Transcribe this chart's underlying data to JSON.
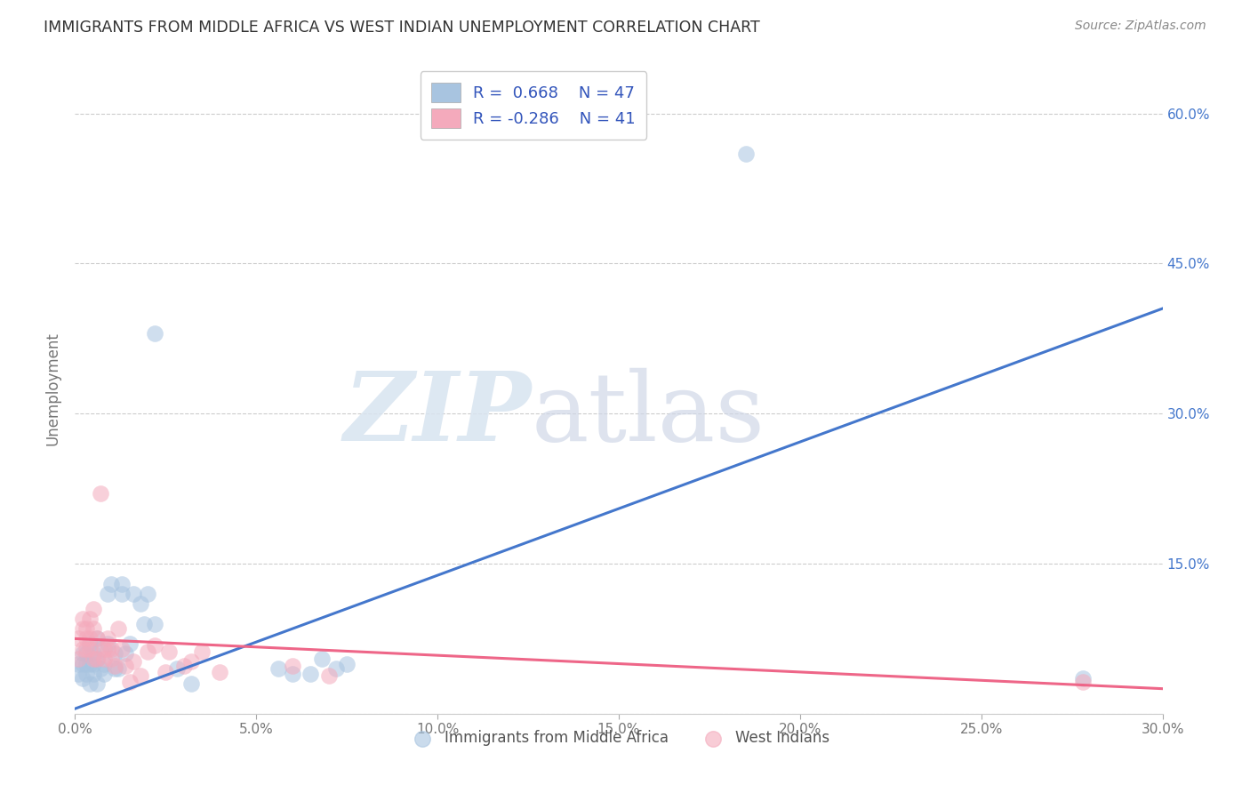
{
  "title": "IMMIGRANTS FROM MIDDLE AFRICA VS WEST INDIAN UNEMPLOYMENT CORRELATION CHART",
  "source": "Source: ZipAtlas.com",
  "ylabel": "Unemployment",
  "blue_R": "0.668",
  "blue_N": "47",
  "pink_R": "-0.286",
  "pink_N": "41",
  "blue_color": "#A8C4E0",
  "pink_color": "#F4AABC",
  "blue_line_color": "#4477CC",
  "pink_line_color": "#EE6688",
  "background_color": "#FFFFFF",
  "blue_line_x0": 0.0,
  "blue_line_y0": 0.005,
  "blue_line_x1": 0.3,
  "blue_line_y1": 0.405,
  "pink_line_x0": 0.0,
  "pink_line_y0": 0.075,
  "pink_line_x1": 0.3,
  "pink_line_y1": 0.025,
  "blue_points": [
    [
      0.001,
      0.05
    ],
    [
      0.001,
      0.04
    ],
    [
      0.002,
      0.05
    ],
    [
      0.002,
      0.035
    ],
    [
      0.002,
      0.06
    ],
    [
      0.003,
      0.05
    ],
    [
      0.003,
      0.04
    ],
    [
      0.003,
      0.06
    ],
    [
      0.004,
      0.07
    ],
    [
      0.004,
      0.05
    ],
    [
      0.004,
      0.03
    ],
    [
      0.005,
      0.06
    ],
    [
      0.005,
      0.05
    ],
    [
      0.005,
      0.04
    ],
    [
      0.006,
      0.055
    ],
    [
      0.006,
      0.075
    ],
    [
      0.006,
      0.03
    ],
    [
      0.007,
      0.065
    ],
    [
      0.007,
      0.045
    ],
    [
      0.008,
      0.05
    ],
    [
      0.008,
      0.04
    ],
    [
      0.009,
      0.07
    ],
    [
      0.009,
      0.12
    ],
    [
      0.01,
      0.13
    ],
    [
      0.011,
      0.06
    ],
    [
      0.011,
      0.045
    ],
    [
      0.012,
      0.045
    ],
    [
      0.013,
      0.12
    ],
    [
      0.013,
      0.13
    ],
    [
      0.014,
      0.06
    ],
    [
      0.015,
      0.07
    ],
    [
      0.016,
      0.12
    ],
    [
      0.018,
      0.11
    ],
    [
      0.019,
      0.09
    ],
    [
      0.02,
      0.12
    ],
    [
      0.022,
      0.09
    ],
    [
      0.022,
      0.38
    ],
    [
      0.028,
      0.045
    ],
    [
      0.032,
      0.03
    ],
    [
      0.056,
      0.045
    ],
    [
      0.06,
      0.04
    ],
    [
      0.065,
      0.04
    ],
    [
      0.068,
      0.055
    ],
    [
      0.072,
      0.045
    ],
    [
      0.075,
      0.05
    ],
    [
      0.185,
      0.56
    ],
    [
      0.278,
      0.035
    ]
  ],
  "pink_points": [
    [
      0.001,
      0.055
    ],
    [
      0.001,
      0.075
    ],
    [
      0.002,
      0.065
    ],
    [
      0.002,
      0.085
    ],
    [
      0.002,
      0.095
    ],
    [
      0.003,
      0.075
    ],
    [
      0.003,
      0.065
    ],
    [
      0.003,
      0.085
    ],
    [
      0.004,
      0.095
    ],
    [
      0.004,
      0.065
    ],
    [
      0.004,
      0.075
    ],
    [
      0.005,
      0.085
    ],
    [
      0.005,
      0.055
    ],
    [
      0.005,
      0.105
    ],
    [
      0.006,
      0.075
    ],
    [
      0.006,
      0.055
    ],
    [
      0.007,
      0.22
    ],
    [
      0.008,
      0.065
    ],
    [
      0.008,
      0.055
    ],
    [
      0.009,
      0.075
    ],
    [
      0.009,
      0.065
    ],
    [
      0.01,
      0.065
    ],
    [
      0.01,
      0.055
    ],
    [
      0.011,
      0.048
    ],
    [
      0.012,
      0.085
    ],
    [
      0.013,
      0.065
    ],
    [
      0.014,
      0.048
    ],
    [
      0.015,
      0.032
    ],
    [
      0.016,
      0.052
    ],
    [
      0.018,
      0.038
    ],
    [
      0.02,
      0.062
    ],
    [
      0.022,
      0.068
    ],
    [
      0.025,
      0.042
    ],
    [
      0.026,
      0.062
    ],
    [
      0.03,
      0.048
    ],
    [
      0.032,
      0.052
    ],
    [
      0.035,
      0.062
    ],
    [
      0.04,
      0.042
    ],
    [
      0.06,
      0.048
    ],
    [
      0.07,
      0.038
    ],
    [
      0.278,
      0.032
    ]
  ],
  "xmin": 0.0,
  "xmax": 0.3,
  "ymin": 0.0,
  "ymax": 0.65,
  "yticks": [
    0.0,
    0.15,
    0.3,
    0.45,
    0.6
  ],
  "xticks": [
    0.0,
    0.05,
    0.1,
    0.15,
    0.2,
    0.25,
    0.3
  ]
}
